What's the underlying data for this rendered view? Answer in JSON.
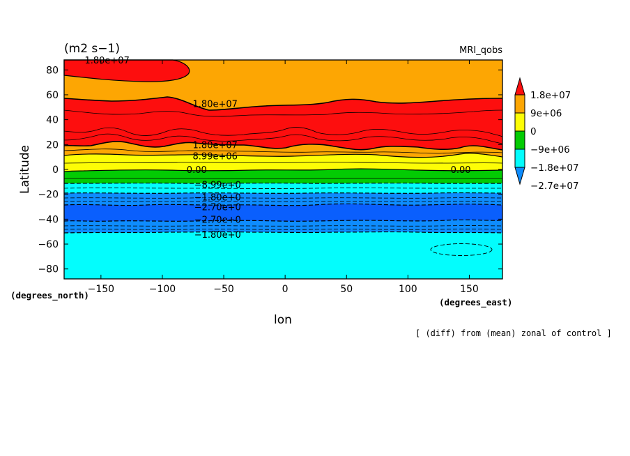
{
  "chart_data": {
    "type": "contour",
    "title_left": "(m2 s−1)",
    "title_right": "MRI_qobs",
    "ylabel": "Latitude",
    "xlabel": "lon",
    "y_unit_label": "(degrees_north)",
    "x_unit_label": "(degrees_east)",
    "footnote": "[ (diff) from (mean) zonal of control ]",
    "xlim": [
      -180,
      177
    ],
    "ylim": [
      -88,
      88
    ],
    "x_ticks": [
      -150,
      -100,
      -50,
      0,
      50,
      100,
      150
    ],
    "x_tick_labels": [
      "−150",
      "−100",
      "−50",
      "0",
      "50",
      "100",
      "150"
    ],
    "y_ticks": [
      80,
      60,
      40,
      20,
      0,
      -20,
      -40,
      -60,
      -80
    ],
    "y_tick_labels": [
      "80",
      "60",
      "40",
      "20",
      "0",
      "−20",
      "−40",
      "−60",
      "−80"
    ],
    "colorbar": {
      "labels": [
        "1.8e+07",
        "9e+06",
        "0",
        "−9e+06",
        "−1.8e+07",
        "−2.7e+07"
      ],
      "colors": [
        "#e00000",
        "#ff8c00",
        "#ffd700",
        "#00c800",
        "#00e5ff",
        "#1e90ff"
      ]
    },
    "fill_colors": {
      "top": "#fda603",
      "red": "#fd0e0e",
      "orange": "#fda603",
      "yellow": "#fdfd06",
      "green": "#03cb03",
      "cyan": "#03fdfd",
      "blue": "#0e8cfd",
      "darkblue": "#0a5ffd"
    },
    "bands": [
      {
        "color": "orange",
        "top_lat": 88,
        "bottom_lat": 56
      },
      {
        "color": "red",
        "top_lat": 56,
        "bottom_lat": 21
      },
      {
        "color": "orange",
        "top_lat": 21,
        "bottom_lat": 12
      },
      {
        "color": "yellow",
        "top_lat": 12,
        "bottom_lat": 0
      },
      {
        "color": "green",
        "top_lat": 0,
        "bottom_lat": -12
      },
      {
        "color": "cyan",
        "top_lat": -12,
        "bottom_lat": -19
      },
      {
        "color": "blue",
        "top_lat": -19,
        "bottom_lat": -29
      },
      {
        "color": "darkblue",
        "top_lat": -29,
        "bottom_lat": -42
      },
      {
        "color": "blue",
        "top_lat": -42,
        "bottom_lat": -50
      },
      {
        "color": "cyan",
        "top_lat": -50,
        "bottom_lat": -88
      }
    ],
    "contour_labels": [
      {
        "text": "1.80e+07",
        "lon": -145,
        "lat": 88
      },
      {
        "text": "1.80e+07",
        "lon": -57,
        "lat": 53
      },
      {
        "text": "1.80e+07",
        "lon": -57,
        "lat": 20
      },
      {
        "text": "8.99e+06",
        "lon": -57,
        "lat": 11
      },
      {
        "text": "0.00",
        "lon": -72,
        "lat": 0
      },
      {
        "text": "0.00",
        "lon": 143,
        "lat": 0
      },
      {
        "text": "−8.99e+0",
        "lon": -55,
        "lat": -12
      },
      {
        "text": "−1.80e+0",
        "lon": -55,
        "lat": -22
      },
      {
        "text": "−2.70e+0",
        "lon": -55,
        "lat": -30
      },
      {
        "text": "−2.70e+0",
        "lon": -55,
        "lat": -40
      },
      {
        "text": "−1.80e+0",
        "lon": -55,
        "lat": -52
      }
    ]
  }
}
